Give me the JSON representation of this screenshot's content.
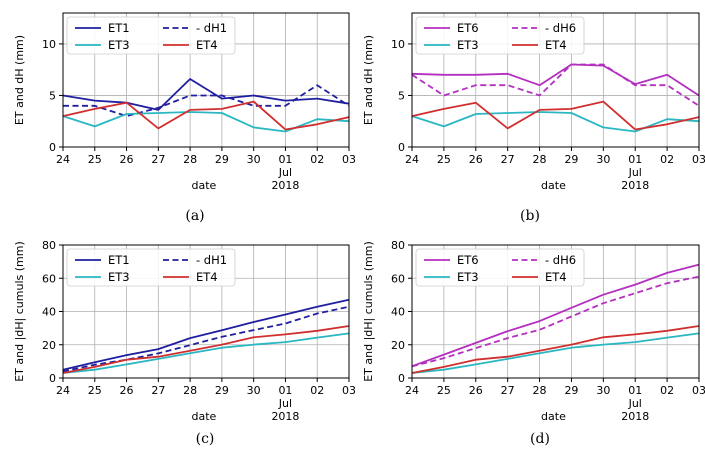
{
  "chart_data": [
    {
      "caption": "(a)",
      "type": "line",
      "x": [
        "24",
        "25",
        "26",
        "27",
        "28",
        "29",
        "30",
        "01",
        "02",
        "03"
      ],
      "xtick_labels": [
        "24",
        "25",
        "26",
        "27",
        "28",
        "29",
        "30",
        "01",
        "02",
        "03"
      ],
      "xtick_sublabel": [
        "Jul",
        "2018"
      ],
      "xlabel": "date",
      "ylabel": "ET and dH (mm)",
      "ylim": [
        0,
        13
      ],
      "yticks": [
        0,
        5,
        10
      ],
      "grid": true,
      "legend_position": "top-left",
      "series": [
        {
          "name": "ET1",
          "color": "#1f1fa0",
          "dash": false,
          "values": [
            5.0,
            4.5,
            4.3,
            3.6,
            6.6,
            4.7,
            5.0,
            4.5,
            4.7,
            4.2
          ]
        },
        {
          "name": "- dH1",
          "color": "#1f1fa0",
          "dash": true,
          "values": [
            4.0,
            4.0,
            3.0,
            3.8,
            5.0,
            5.0,
            4.0,
            4.0,
            6.0,
            4.0
          ]
        },
        {
          "name": "ET3",
          "color": "#2ab7c2",
          "dash": false,
          "values": [
            3.0,
            2.0,
            3.2,
            3.3,
            3.4,
            3.3,
            1.9,
            1.5,
            2.7,
            2.5
          ]
        },
        {
          "name": "ET4",
          "color": "#d12f2f",
          "dash": false,
          "values": [
            3.0,
            3.7,
            4.3,
            1.8,
            3.6,
            3.7,
            4.4,
            1.7,
            2.2,
            2.9
          ]
        }
      ]
    },
    {
      "caption": "(b)",
      "type": "line",
      "x": [
        "24",
        "25",
        "26",
        "27",
        "28",
        "29",
        "30",
        "01",
        "02",
        "03"
      ],
      "xtick_labels": [
        "24",
        "25",
        "26",
        "27",
        "28",
        "29",
        "30",
        "01",
        "02",
        "03"
      ],
      "xtick_sublabel": [
        "Jul",
        "2018"
      ],
      "xlabel": "date",
      "ylabel": "ET and dH (mm)",
      "ylim": [
        0,
        13
      ],
      "yticks": [
        0,
        5,
        10
      ],
      "grid": true,
      "legend_position": "top-left",
      "series": [
        {
          "name": "ET6",
          "color": "#b42fc0",
          "dash": false,
          "values": [
            7.1,
            7.0,
            7.0,
            7.1,
            6.0,
            8.0,
            7.9,
            6.1,
            7.0,
            5.0
          ]
        },
        {
          "name": "- dH6",
          "color": "#b42fc0",
          "dash": true,
          "values": [
            7.0,
            5.0,
            6.0,
            6.0,
            5.0,
            8.0,
            8.0,
            6.0,
            6.0,
            4.0
          ]
        },
        {
          "name": "ET3",
          "color": "#2ab7c2",
          "dash": false,
          "values": [
            3.0,
            2.0,
            3.2,
            3.3,
            3.4,
            3.3,
            1.9,
            1.5,
            2.7,
            2.5
          ]
        },
        {
          "name": "ET4",
          "color": "#d12f2f",
          "dash": false,
          "values": [
            3.0,
            3.7,
            4.3,
            1.8,
            3.6,
            3.7,
            4.4,
            1.7,
            2.2,
            2.9
          ]
        }
      ]
    },
    {
      "caption": "(c)",
      "type": "line",
      "x": [
        "24",
        "25",
        "26",
        "27",
        "28",
        "29",
        "30",
        "01",
        "02",
        "03"
      ],
      "xtick_labels": [
        "24",
        "25",
        "26",
        "27",
        "28",
        "29",
        "30",
        "01",
        "02",
        "03"
      ],
      "xtick_sublabel": [
        "Jul",
        "2018"
      ],
      "xlabel": "date",
      "ylabel": "ET and |dH| cumuls (mm)",
      "ylim": [
        0,
        80
      ],
      "yticks": [
        0,
        20,
        40,
        60,
        80
      ],
      "grid": true,
      "legend_position": "top-left",
      "series": [
        {
          "name": "ET1",
          "color": "#1f1fa0",
          "dash": false,
          "values": [
            5.0,
            9.5,
            13.8,
            17.4,
            24.0,
            28.7,
            33.7,
            38.2,
            42.9,
            47.1
          ]
        },
        {
          "name": "- dH1",
          "color": "#1f1fa0",
          "dash": true,
          "values": [
            4.0,
            8.0,
            11.0,
            14.8,
            19.8,
            24.8,
            28.8,
            32.8,
            38.8,
            42.8
          ]
        },
        {
          "name": "ET3",
          "color": "#2ab7c2",
          "dash": false,
          "values": [
            3.0,
            5.0,
            8.2,
            11.5,
            14.9,
            18.2,
            20.1,
            21.6,
            24.3,
            26.8
          ]
        },
        {
          "name": "ET4",
          "color": "#d12f2f",
          "dash": false,
          "values": [
            3.0,
            6.7,
            11.0,
            12.8,
            16.4,
            20.1,
            24.5,
            26.2,
            28.4,
            31.3
          ]
        }
      ]
    },
    {
      "caption": "(d)",
      "type": "line",
      "x": [
        "24",
        "25",
        "26",
        "27",
        "28",
        "29",
        "30",
        "01",
        "02",
        "03"
      ],
      "xtick_labels": [
        "24",
        "25",
        "26",
        "27",
        "28",
        "29",
        "30",
        "01",
        "02",
        "03"
      ],
      "xtick_sublabel": [
        "Jul",
        "2018"
      ],
      "xlabel": "date",
      "ylabel": "ET and |dH| cumuls (mm)",
      "ylim": [
        0,
        80
      ],
      "yticks": [
        0,
        20,
        40,
        60,
        80
      ],
      "grid": true,
      "legend_position": "top-left",
      "series": [
        {
          "name": "ET6",
          "color": "#b42fc0",
          "dash": false,
          "values": [
            7.1,
            14.1,
            21.1,
            28.2,
            34.2,
            42.2,
            50.1,
            56.2,
            63.2,
            68.2
          ]
        },
        {
          "name": "- dH6",
          "color": "#b42fc0",
          "dash": true,
          "values": [
            7.0,
            12.0,
            18.0,
            24.0,
            29.0,
            37.0,
            45.0,
            51.0,
            57.0,
            61.0
          ]
        },
        {
          "name": "ET3",
          "color": "#2ab7c2",
          "dash": false,
          "values": [
            3.0,
            5.0,
            8.2,
            11.5,
            14.9,
            18.2,
            20.1,
            21.6,
            24.3,
            26.8
          ]
        },
        {
          "name": "ET4",
          "color": "#d12f2f",
          "dash": false,
          "values": [
            3.0,
            6.7,
            11.0,
            12.8,
            16.4,
            20.1,
            24.5,
            26.2,
            28.4,
            31.3
          ]
        }
      ]
    }
  ]
}
